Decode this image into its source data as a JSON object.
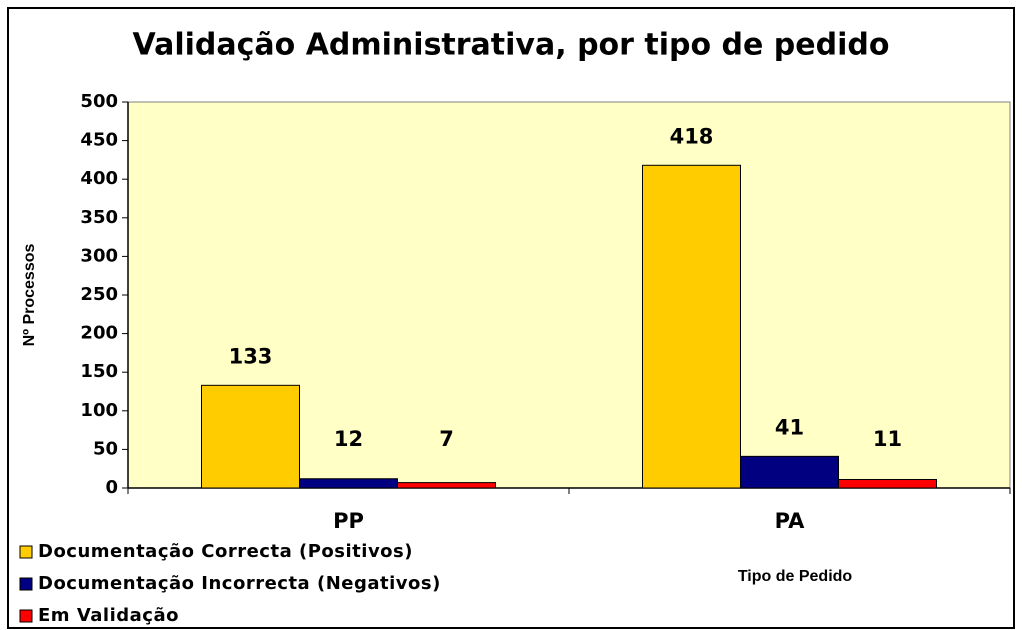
{
  "chart_data": {
    "type": "bar",
    "title": "Validação Administrativa, por tipo de pedido",
    "x_label": "Tipo de Pedido",
    "y_label": "Nº Processos",
    "categories": [
      "PP",
      "PA"
    ],
    "series": [
      {
        "name": "Documentação Correcta (Positivos)",
        "color": "#ffcc00",
        "values": [
          133,
          418
        ]
      },
      {
        "name": "Documentação Incorrecta (Negativos)",
        "color": "#000080",
        "values": [
          12,
          41
        ]
      },
      {
        "name": "Em Validação",
        "color": "#ff0000",
        "values": [
          7,
          11
        ]
      }
    ],
    "ylim": [
      0,
      500
    ],
    "yticks": [
      0,
      50,
      100,
      150,
      200,
      250,
      300,
      350,
      400,
      450,
      500
    ],
    "grid": false,
    "legend": "bottom-left"
  }
}
